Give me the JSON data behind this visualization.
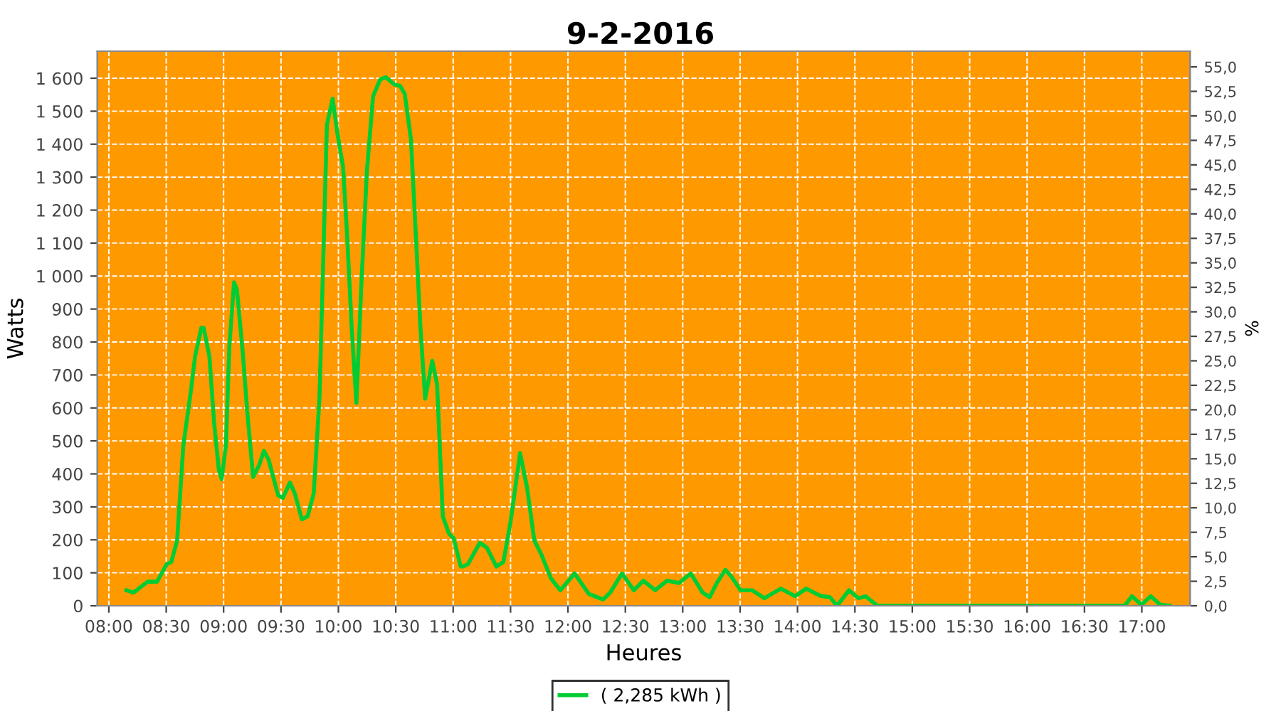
{
  "chart_data": {
    "type": "line",
    "title": "9-2-2016",
    "xlabel": "Heures",
    "ylabel": "Watts",
    "y2label": "%",
    "xlim": [
      7.9,
      17.42
    ],
    "xticks": [
      {
        "value": 8,
        "label": "08:00"
      },
      {
        "value": 8.5,
        "label": "08:30"
      },
      {
        "value": 9,
        "label": "09:00"
      },
      {
        "value": 9.5,
        "label": "09:30"
      },
      {
        "value": 10,
        "label": "10:00"
      },
      {
        "value": 10.5,
        "label": "10:30"
      },
      {
        "value": 11,
        "label": "11:00"
      },
      {
        "value": 11.5,
        "label": "11:30"
      },
      {
        "value": 12,
        "label": "12:00"
      },
      {
        "value": 12.5,
        "label": "12:30"
      },
      {
        "value": 13,
        "label": "13:00"
      },
      {
        "value": 13.5,
        "label": "13:30"
      },
      {
        "value": 14,
        "label": "14:00"
      },
      {
        "value": 14.5,
        "label": "14:30"
      },
      {
        "value": 15,
        "label": "15:00"
      },
      {
        "value": 15.5,
        "label": "15:30"
      },
      {
        "value": 16,
        "label": "16:00"
      },
      {
        "value": 16.5,
        "label": "16:30"
      },
      {
        "value": 17,
        "label": "17:00"
      }
    ],
    "ylim": [
      0,
      1682
    ],
    "yticks": [
      0,
      100,
      200,
      300,
      400,
      500,
      600,
      700,
      800,
      900,
      {
        "value": 1000,
        "label": "1 000"
      },
      {
        "value": 1100,
        "label": "1 100"
      },
      {
        "value": 1200,
        "label": "1 200"
      },
      {
        "value": 1300,
        "label": "1 300"
      },
      {
        "value": 1400,
        "label": "1 400"
      },
      {
        "value": 1500,
        "label": "1 500"
      },
      {
        "value": 1600,
        "label": "1 600"
      }
    ],
    "y2lim": [
      0,
      56.6
    ],
    "y2ticks": [
      {
        "value": 0,
        "label": "0,0"
      },
      {
        "value": 2.5,
        "label": "2,5"
      },
      {
        "value": 5,
        "label": "5,0"
      },
      {
        "value": 7.5,
        "label": "7,5"
      },
      {
        "value": 10,
        "label": "10,0"
      },
      {
        "value": 12.5,
        "label": "12,5"
      },
      {
        "value": 15,
        "label": "15,0"
      },
      {
        "value": 17.5,
        "label": "17,5"
      },
      {
        "value": 20,
        "label": "20,0"
      },
      {
        "value": 22.5,
        "label": "22,5"
      },
      {
        "value": 25,
        "label": "25,0"
      },
      {
        "value": 27.5,
        "label": "27,5"
      },
      {
        "value": 30,
        "label": "30,0"
      },
      {
        "value": 32.5,
        "label": "32,5"
      },
      {
        "value": 35,
        "label": "35,0"
      },
      {
        "value": 37.5,
        "label": "37,5"
      },
      {
        "value": 40,
        "label": "40,0"
      },
      {
        "value": 42.5,
        "label": "42,5"
      },
      {
        "value": 45,
        "label": "45,0"
      },
      {
        "value": 47.5,
        "label": "47,5"
      },
      {
        "value": 50,
        "label": "50,0"
      },
      {
        "value": 52.5,
        "label": "52,5"
      },
      {
        "value": 55,
        "label": "55,0"
      }
    ],
    "grid": true,
    "legend": "bottom",
    "marker": "none",
    "line_style": "solid",
    "series": [
      {
        "name": "( 2,285 kWh )",
        "color": "#00cc33",
        "x": [
          8.153,
          8.215,
          8.338,
          8.42,
          8.504,
          8.545,
          8.595,
          8.649,
          8.711,
          8.752,
          8.806,
          8.826,
          8.876,
          8.917,
          8.958,
          8.983,
          9.02,
          9.05,
          9.091,
          9.116,
          9.166,
          9.207,
          9.257,
          9.31,
          9.351,
          9.392,
          9.475,
          9.516,
          9.578,
          9.62,
          9.682,
          9.732,
          9.785,
          9.835,
          9.9,
          9.95,
          9.992,
          10.041,
          10.075,
          10.116,
          10.157,
          10.198,
          10.248,
          10.302,
          10.364,
          10.413,
          10.488,
          10.537,
          10.578,
          10.632,
          10.674,
          10.715,
          10.756,
          10.818,
          10.86,
          10.91,
          10.963,
          11.004,
          11.066,
          11.087,
          11.128,
          11.232,
          11.294,
          11.376,
          11.438,
          11.5,
          11.583,
          11.645,
          11.707,
          11.769,
          11.852,
          11.934,
          12.058,
          12.182,
          12.306,
          12.368,
          12.471,
          12.574,
          12.657,
          12.76,
          12.863,
          12.967,
          13.07,
          13.173,
          13.235,
          13.297,
          13.371,
          13.421,
          13.504,
          13.607,
          13.711,
          13.855,
          13.979,
          14.076,
          14.2,
          14.283,
          14.345,
          14.448,
          14.531,
          14.593,
          14.696,
          15.5,
          16.5,
          16.851,
          16.913,
          16.996,
          17.078,
          17.161,
          17.243
        ],
        "values": [
          47,
          40,
          73,
          73,
          126,
          133,
          198,
          486,
          642,
          757,
          843,
          843,
          757,
          556,
          413,
          384,
          486,
          787,
          981,
          959,
          771,
          585,
          391,
          427,
          470,
          443,
          335,
          327,
          374,
          341,
          262,
          271,
          341,
          628,
          1459,
          1538,
          1431,
          1330,
          1130,
          843,
          615,
          959,
          1316,
          1545,
          1596,
          1603,
          1581,
          1577,
          1553,
          1416,
          1130,
          843,
          628,
          743,
          671,
          271,
          219,
          205,
          119,
          119,
          126,
          191,
          176,
          119,
          133,
          255,
          463,
          356,
          198,
          155,
          83,
          47,
          98,
          36,
          19,
          40,
          98,
          47,
          76,
          47,
          76,
          69,
          98,
          40,
          26,
          69,
          109,
          90,
          47,
          47,
          23,
          52,
          29,
          52,
          30,
          26,
          0,
          47,
          23,
          29,
          0,
          0,
          0,
          0,
          29,
          3,
          29,
          3,
          0
        ]
      }
    ]
  }
}
